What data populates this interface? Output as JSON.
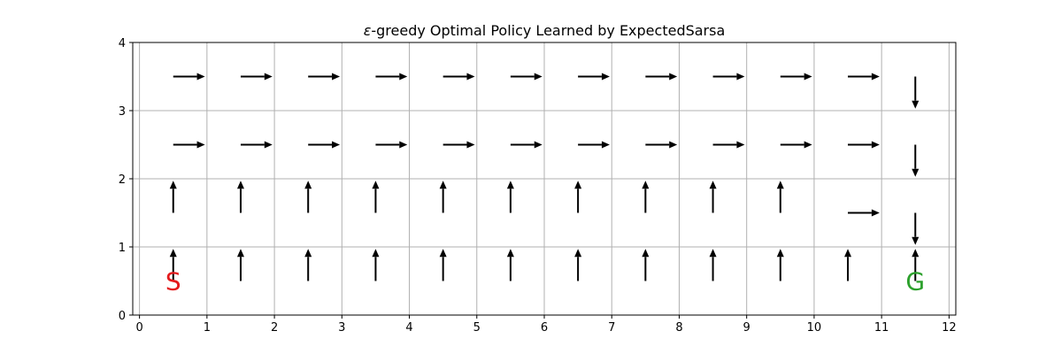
{
  "chart_data": {
    "type": "quiver",
    "title_symbol": "ε",
    "title_rest": "-greedy Optimal Policy Learned by ExpectedSarsa",
    "xlim": [
      0,
      12
    ],
    "ylim": [
      0,
      4
    ],
    "xticks": [
      0,
      1,
      2,
      3,
      4,
      5,
      6,
      7,
      8,
      9,
      10,
      11,
      12
    ],
    "yticks": [
      0,
      1,
      2,
      3,
      4
    ],
    "grid": true,
    "arrow_color": "#000000",
    "policy": [
      [
        "right",
        "right",
        "right",
        "right",
        "right",
        "right",
        "right",
        "right",
        "right",
        "right",
        "right",
        "down"
      ],
      [
        "right",
        "right",
        "right",
        "right",
        "right",
        "right",
        "right",
        "right",
        "right",
        "right",
        "right",
        "down"
      ],
      [
        "up",
        "up",
        "up",
        "up",
        "up",
        "up",
        "up",
        "up",
        "up",
        "up",
        "right",
        "down"
      ],
      [
        "up",
        "up",
        "up",
        "up",
        "up",
        "up",
        "up",
        "up",
        "up",
        "up",
        "up",
        "up"
      ]
    ],
    "markers": [
      {
        "text": "S",
        "x": 0.5,
        "y": 0.5,
        "color": "#e41a1c"
      },
      {
        "text": "G",
        "x": 11.5,
        "y": 0.5,
        "color": "#2ca02c"
      }
    ]
  }
}
